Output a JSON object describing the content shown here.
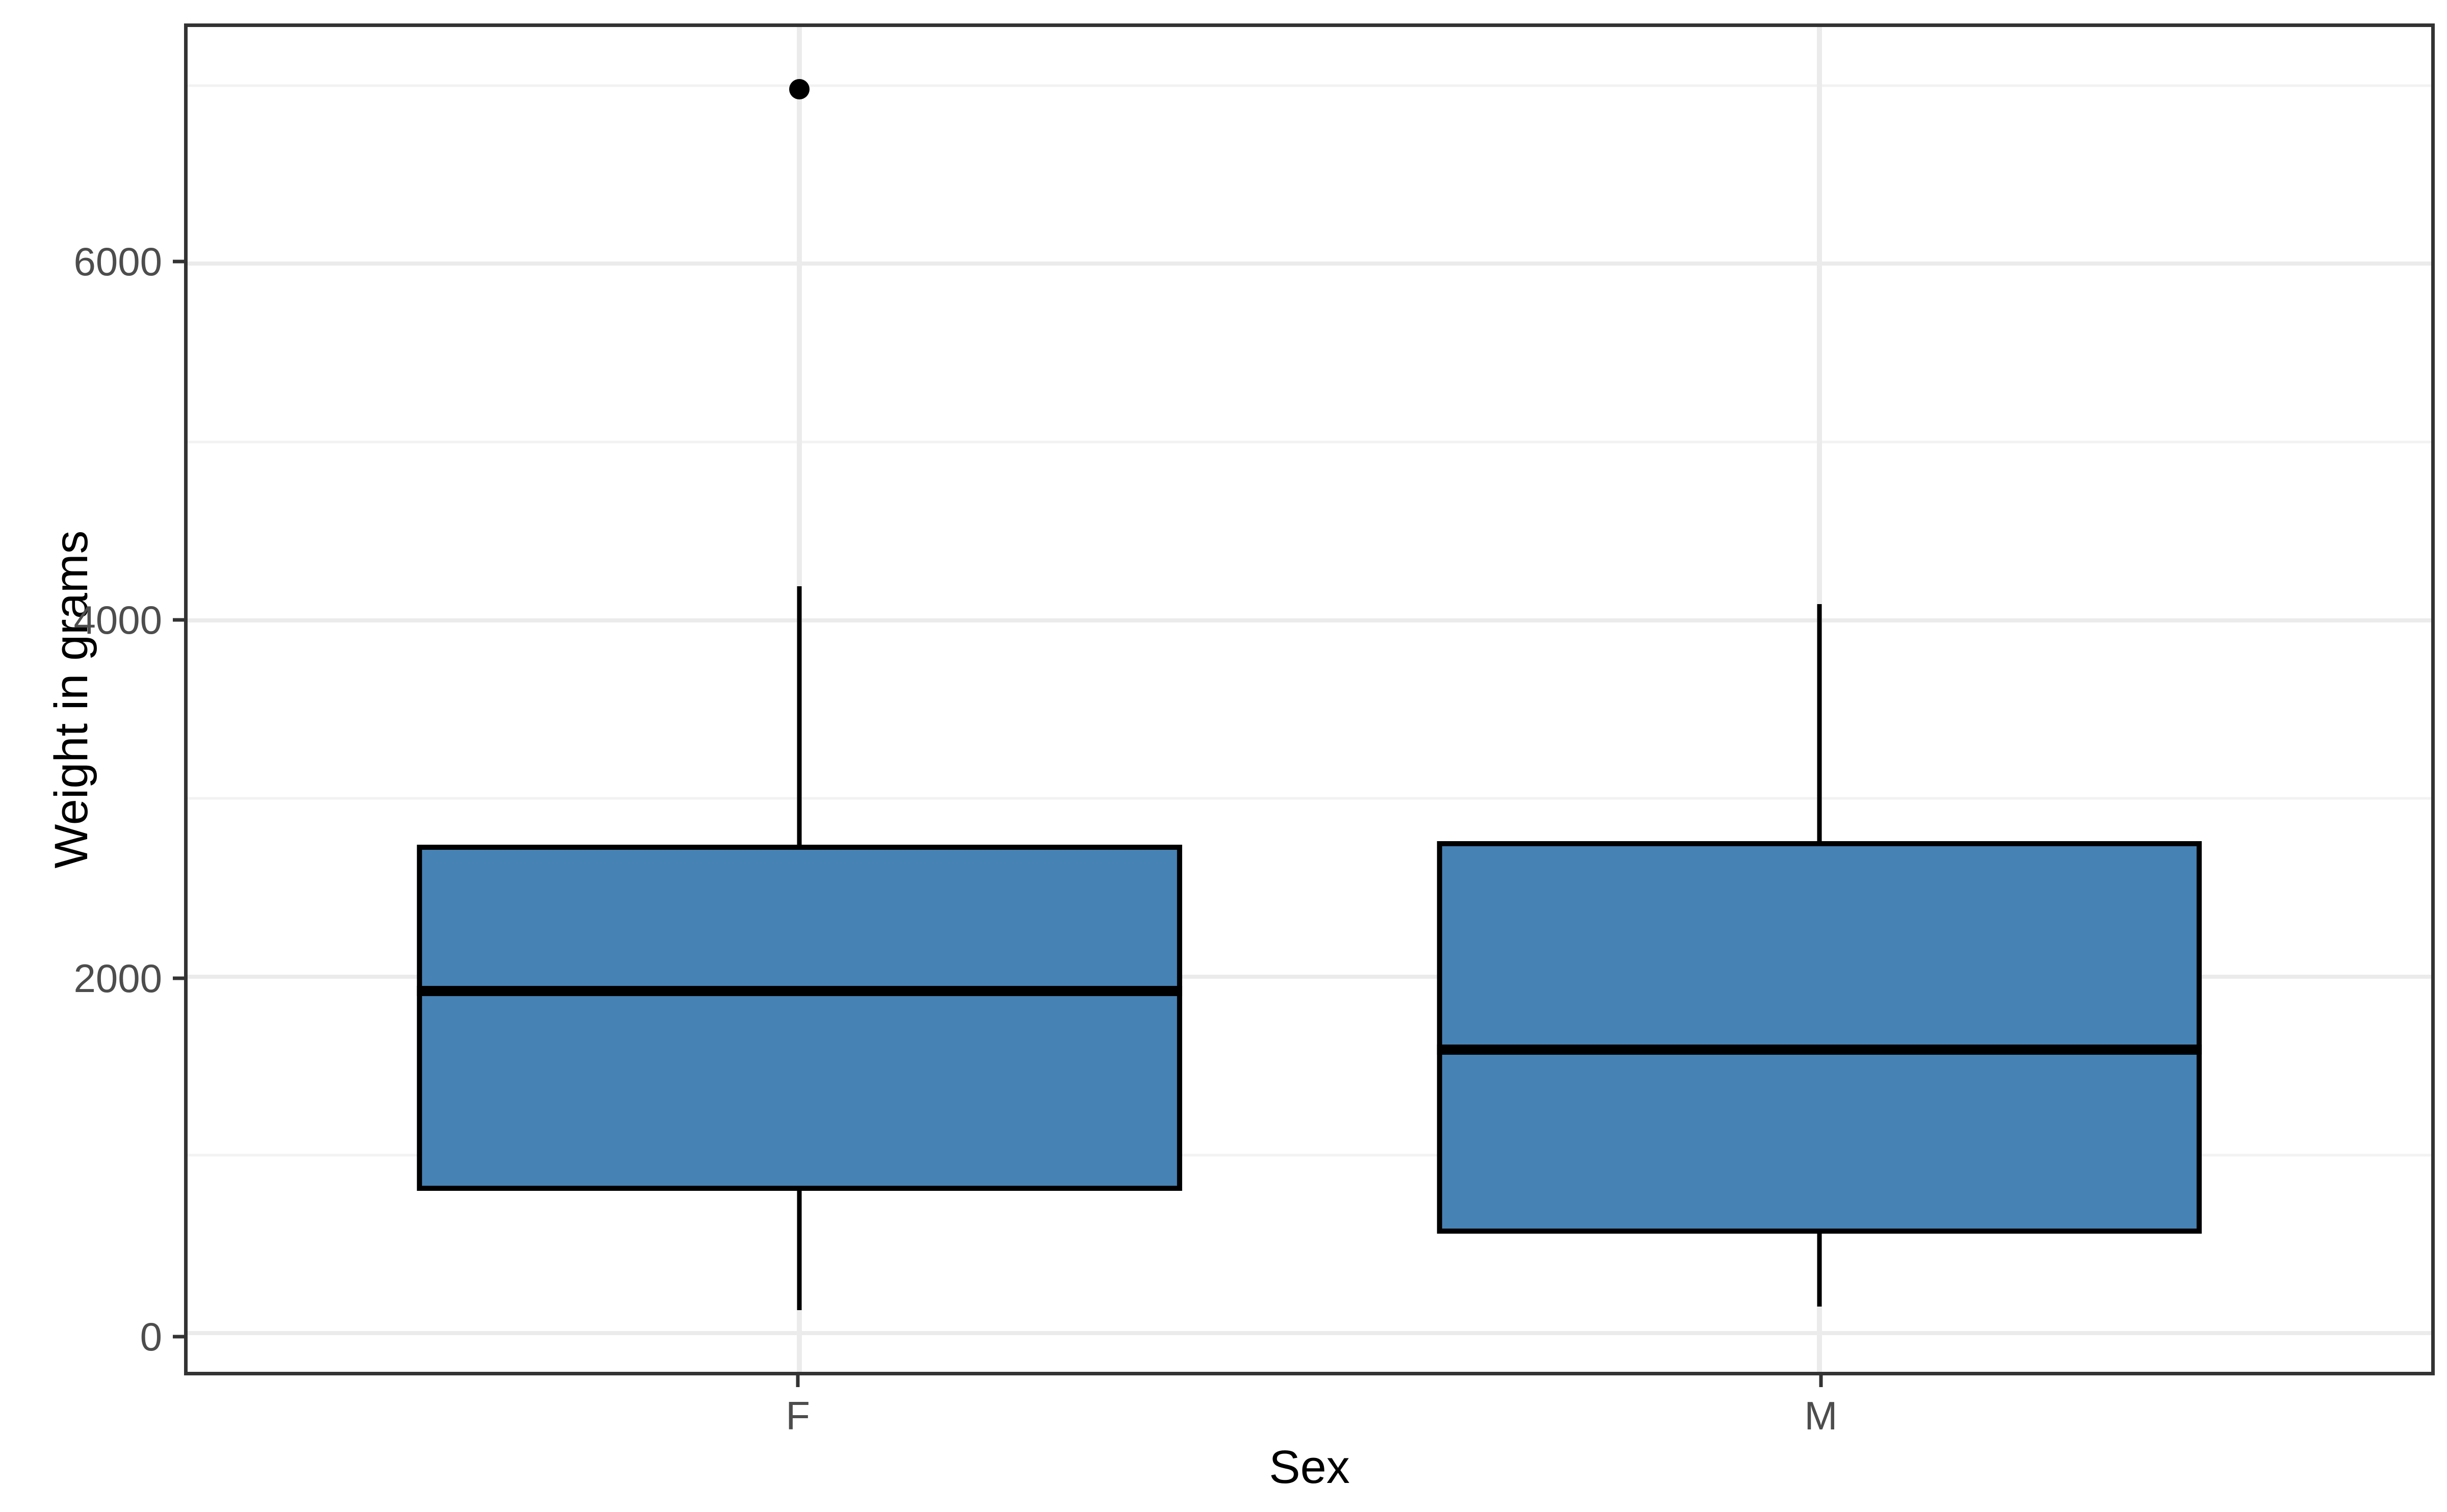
{
  "chart_data": {
    "type": "boxplot",
    "title": "",
    "xlabel": "Sex",
    "ylabel": "Weight in grams",
    "categories": [
      "F",
      "M"
    ],
    "series": [
      {
        "category": "F",
        "min": 130,
        "q1": 800,
        "median": 1920,
        "q3": 2740,
        "max": 4190,
        "outliers": [
          6980
        ]
      },
      {
        "category": "M",
        "min": 150,
        "q1": 560,
        "median": 1590,
        "q3": 2760,
        "max": 4090,
        "outliers": []
      }
    ],
    "y_ticks": [
      0,
      2000,
      4000,
      6000
    ],
    "y_tick_labels": [
      "0",
      "2000",
      "4000",
      "6000"
    ],
    "y_minor_gridlines": [
      1000,
      3000,
      5000,
      7000
    ],
    "ylim": [
      -216,
      7328
    ],
    "x_unit_positions": [
      1,
      2
    ],
    "xlim": [
      0.4,
      2.6
    ],
    "box_width_units": 0.75,
    "grid": "on",
    "legend": "none",
    "colors": {
      "box_fill": "#4682B4",
      "box_stroke": "#000000",
      "panel_border": "#333333",
      "grid_major": "#EBEBEB",
      "grid_minor": "#F2F2F2",
      "tick_label": "#4D4D4D",
      "axis_title": "#000000",
      "background": "#FFFFFF"
    }
  }
}
